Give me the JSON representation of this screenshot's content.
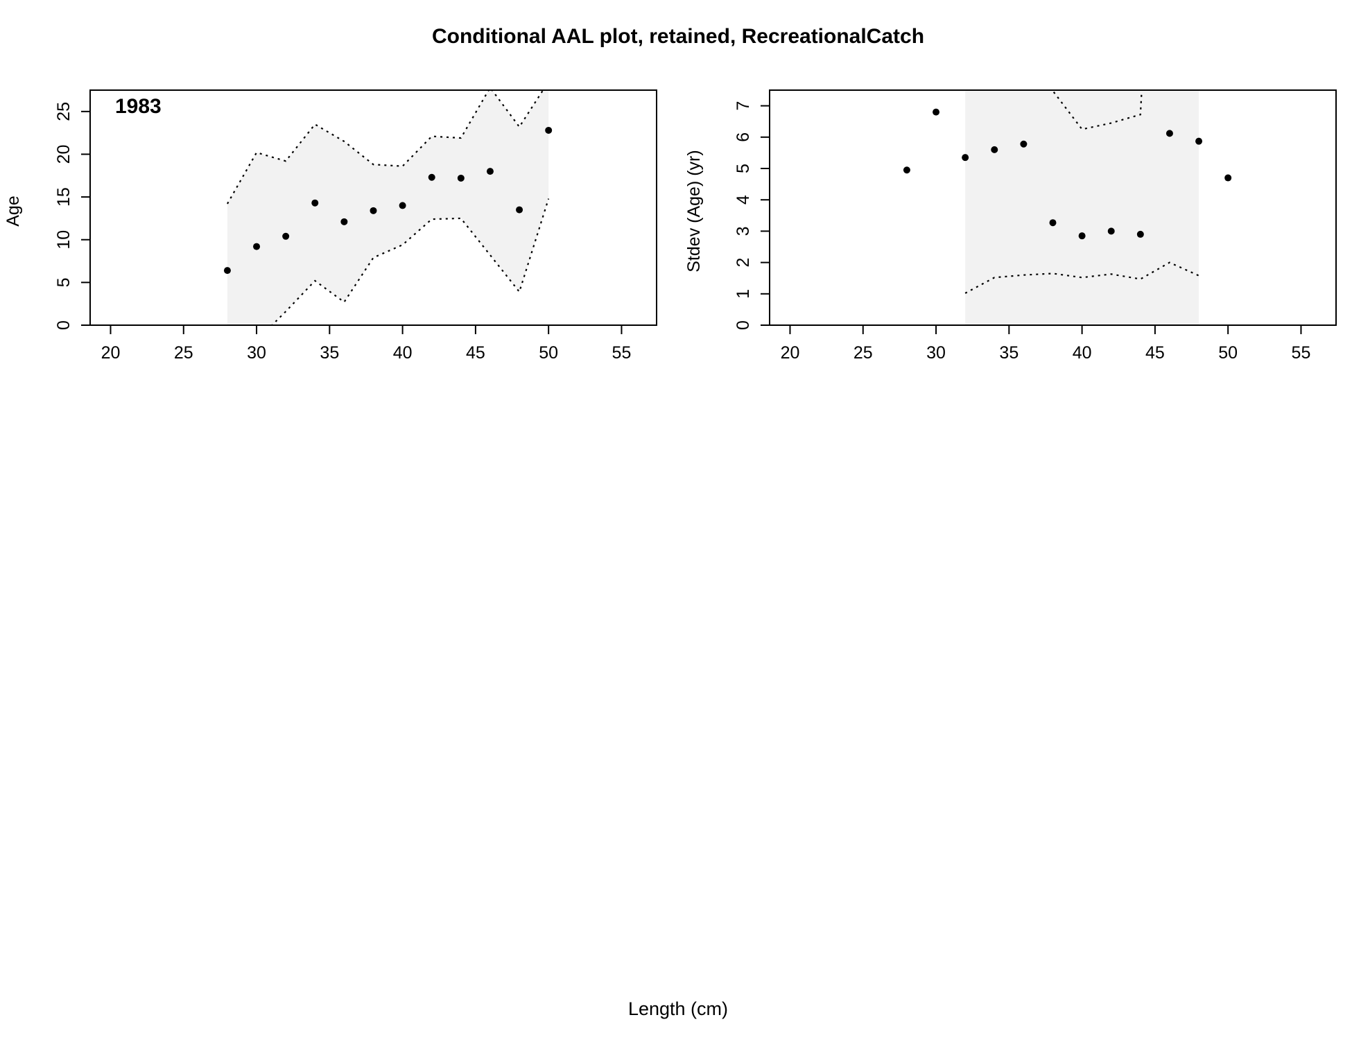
{
  "title": "Conditional AAL plot, retained, RecreationalCatch",
  "xlabel": "Length (cm)",
  "chart_data": [
    {
      "type": "scatter",
      "panel_label": "1983",
      "ylabel": "Age",
      "xlim": [
        18.6,
        57.4
      ],
      "ylim": [
        0,
        27.5
      ],
      "xticks": [
        20,
        25,
        30,
        35,
        40,
        45,
        50,
        55
      ],
      "yticks": [
        0,
        5,
        10,
        15,
        20,
        25
      ],
      "grid": false,
      "shade_color": "#f2f2f2",
      "points": {
        "x": [
          28,
          30,
          32,
          34,
          36,
          38,
          40,
          42,
          44,
          46,
          48,
          50
        ],
        "y": [
          6.4,
          9.2,
          10.4,
          14.3,
          12.1,
          13.4,
          14.0,
          17.3,
          17.2,
          18.0,
          13.5,
          22.8
        ]
      },
      "upper_bound": {
        "x": [
          28,
          30,
          32,
          34,
          36,
          38,
          40,
          42,
          44,
          46,
          48,
          50
        ],
        "y": [
          14.2,
          20.2,
          19.2,
          23.5,
          21.5,
          18.8,
          18.6,
          22.1,
          21.9,
          27.8,
          23.2,
          28.5
        ]
      },
      "lower_bound": {
        "x": [
          28,
          30,
          32,
          34,
          36,
          38,
          40,
          42,
          44,
          46,
          48,
          50
        ],
        "y": [
          -1.4,
          -1.8,
          1.6,
          5.2,
          2.7,
          7.9,
          9.4,
          12.4,
          12.5,
          8.2,
          3.9,
          14.8
        ]
      }
    },
    {
      "type": "scatter",
      "ylabel": "Stdev (Age) (yr)",
      "xlim": [
        18.6,
        57.4
      ],
      "ylim": [
        0,
        7.5
      ],
      "xticks": [
        20,
        25,
        30,
        35,
        40,
        45,
        50,
        55
      ],
      "yticks": [
        0,
        1,
        2,
        3,
        4,
        5,
        6,
        7
      ],
      "grid": false,
      "shade_color": "#f2f2f2",
      "shade_x": [
        32,
        48
      ],
      "points": {
        "x": [
          28,
          30,
          32,
          34,
          36,
          38,
          40,
          42,
          44,
          46,
          48,
          50
        ],
        "y": [
          4.95,
          6.8,
          5.35,
          5.6,
          5.78,
          3.27,
          2.85,
          3.0,
          2.9,
          6.12,
          5.87,
          4.7
        ]
      },
      "upper_bound": {
        "x": [
          37.8,
          40,
          42,
          44,
          44.1
        ],
        "y": [
          7.6,
          6.25,
          6.45,
          6.72,
          7.6
        ]
      },
      "lower_bound": {
        "x": [
          32,
          34,
          36,
          38,
          40,
          42,
          44,
          46,
          48
        ],
        "y": [
          1.02,
          1.52,
          1.6,
          1.65,
          1.52,
          1.63,
          1.47,
          2.0,
          1.58
        ]
      }
    }
  ]
}
